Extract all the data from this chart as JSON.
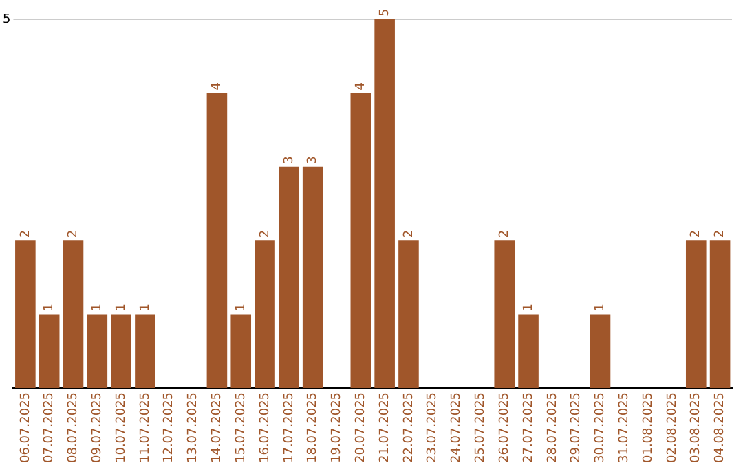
{
  "chart_data": {
    "type": "bar",
    "categories": [
      "06.07.2025",
      "07.07.2025",
      "08.07.2025",
      "09.07.2025",
      "10.07.2025",
      "11.07.2025",
      "12.07.2025",
      "13.07.2025",
      "14.07.2025",
      "15.07.2025",
      "16.07.2025",
      "17.07.2025",
      "18.07.2025",
      "19.07.2025",
      "20.07.2025",
      "21.07.2025",
      "22.07.2025",
      "23.07.2025",
      "24.07.2025",
      "25.07.2025",
      "26.07.2025",
      "27.07.2025",
      "28.07.2025",
      "29.07.2025",
      "30.07.2025",
      "31.07.2025",
      "01.08.2025",
      "02.08.2025",
      "03.08.2025",
      "04.08.2025"
    ],
    "values": [
      2,
      1,
      2,
      1,
      1,
      1,
      0,
      0,
      4,
      1,
      2,
      3,
      3,
      0,
      4,
      5,
      2,
      0,
      0,
      0,
      2,
      1,
      0,
      0,
      1,
      0,
      0,
      0,
      2,
      2
    ],
    "value_labels": [
      "2",
      "1",
      "2",
      "1",
      "1",
      "1",
      null,
      null,
      "4",
      "1",
      "2",
      "3",
      "3",
      null,
      "4",
      "5",
      "2",
      null,
      null,
      null,
      "2",
      "1",
      null,
      null,
      "1",
      null,
      null,
      null,
      "2",
      "2"
    ],
    "color": "#a0562a",
    "ylim": [
      0,
      5
    ],
    "yticks": [
      5
    ],
    "grid": false,
    "ref_lines": [
      {
        "axis": "y",
        "value": 5,
        "color": "#cccccc"
      }
    ],
    "legend": false
  }
}
